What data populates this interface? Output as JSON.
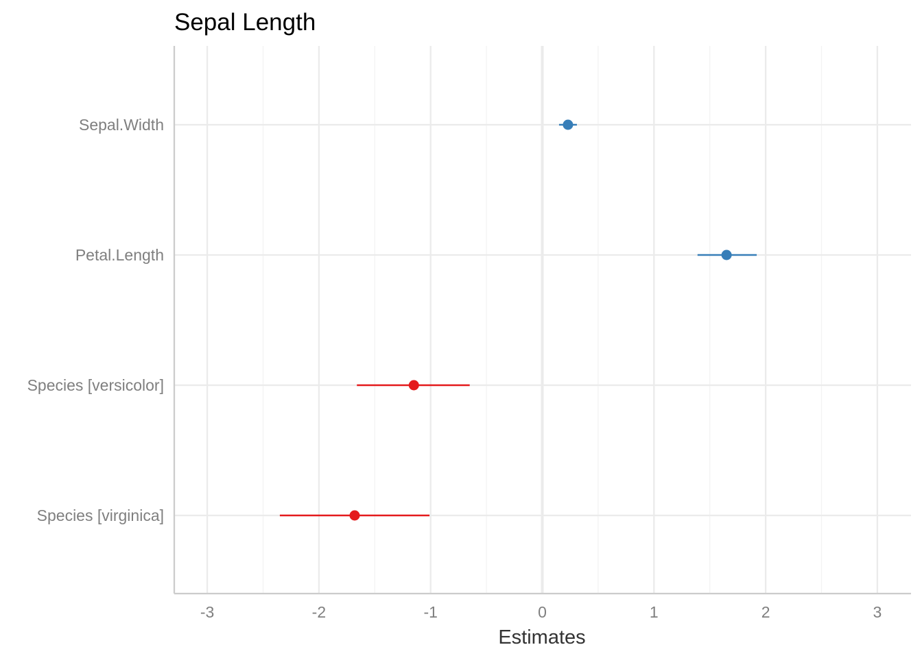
{
  "chart_data": {
    "type": "scatter",
    "title": "Sepal Length",
    "xlabel": "Estimates",
    "ylabel": "",
    "xlim": [
      -3.3,
      3.3
    ],
    "x_ticks": [
      "-3",
      "-2",
      "-1",
      "0",
      "1",
      "2",
      "3"
    ],
    "x_tick_values": [
      -3,
      -2,
      -1,
      0,
      1,
      2,
      3
    ],
    "grid": true,
    "legend": "none",
    "terms": [
      "Sepal.Width",
      "Petal.Length",
      "Species [versicolor]",
      "Species [virginica]"
    ],
    "estimates": [
      0.23,
      1.65,
      -1.15,
      -1.68
    ],
    "conf_low": [
      0.15,
      1.39,
      -1.66,
      -2.35
    ],
    "conf_high": [
      0.31,
      1.92,
      -0.65,
      -1.01
    ],
    "colors": [
      "#377EB8",
      "#377EB8",
      "#E41A1C",
      "#E41A1C"
    ]
  }
}
